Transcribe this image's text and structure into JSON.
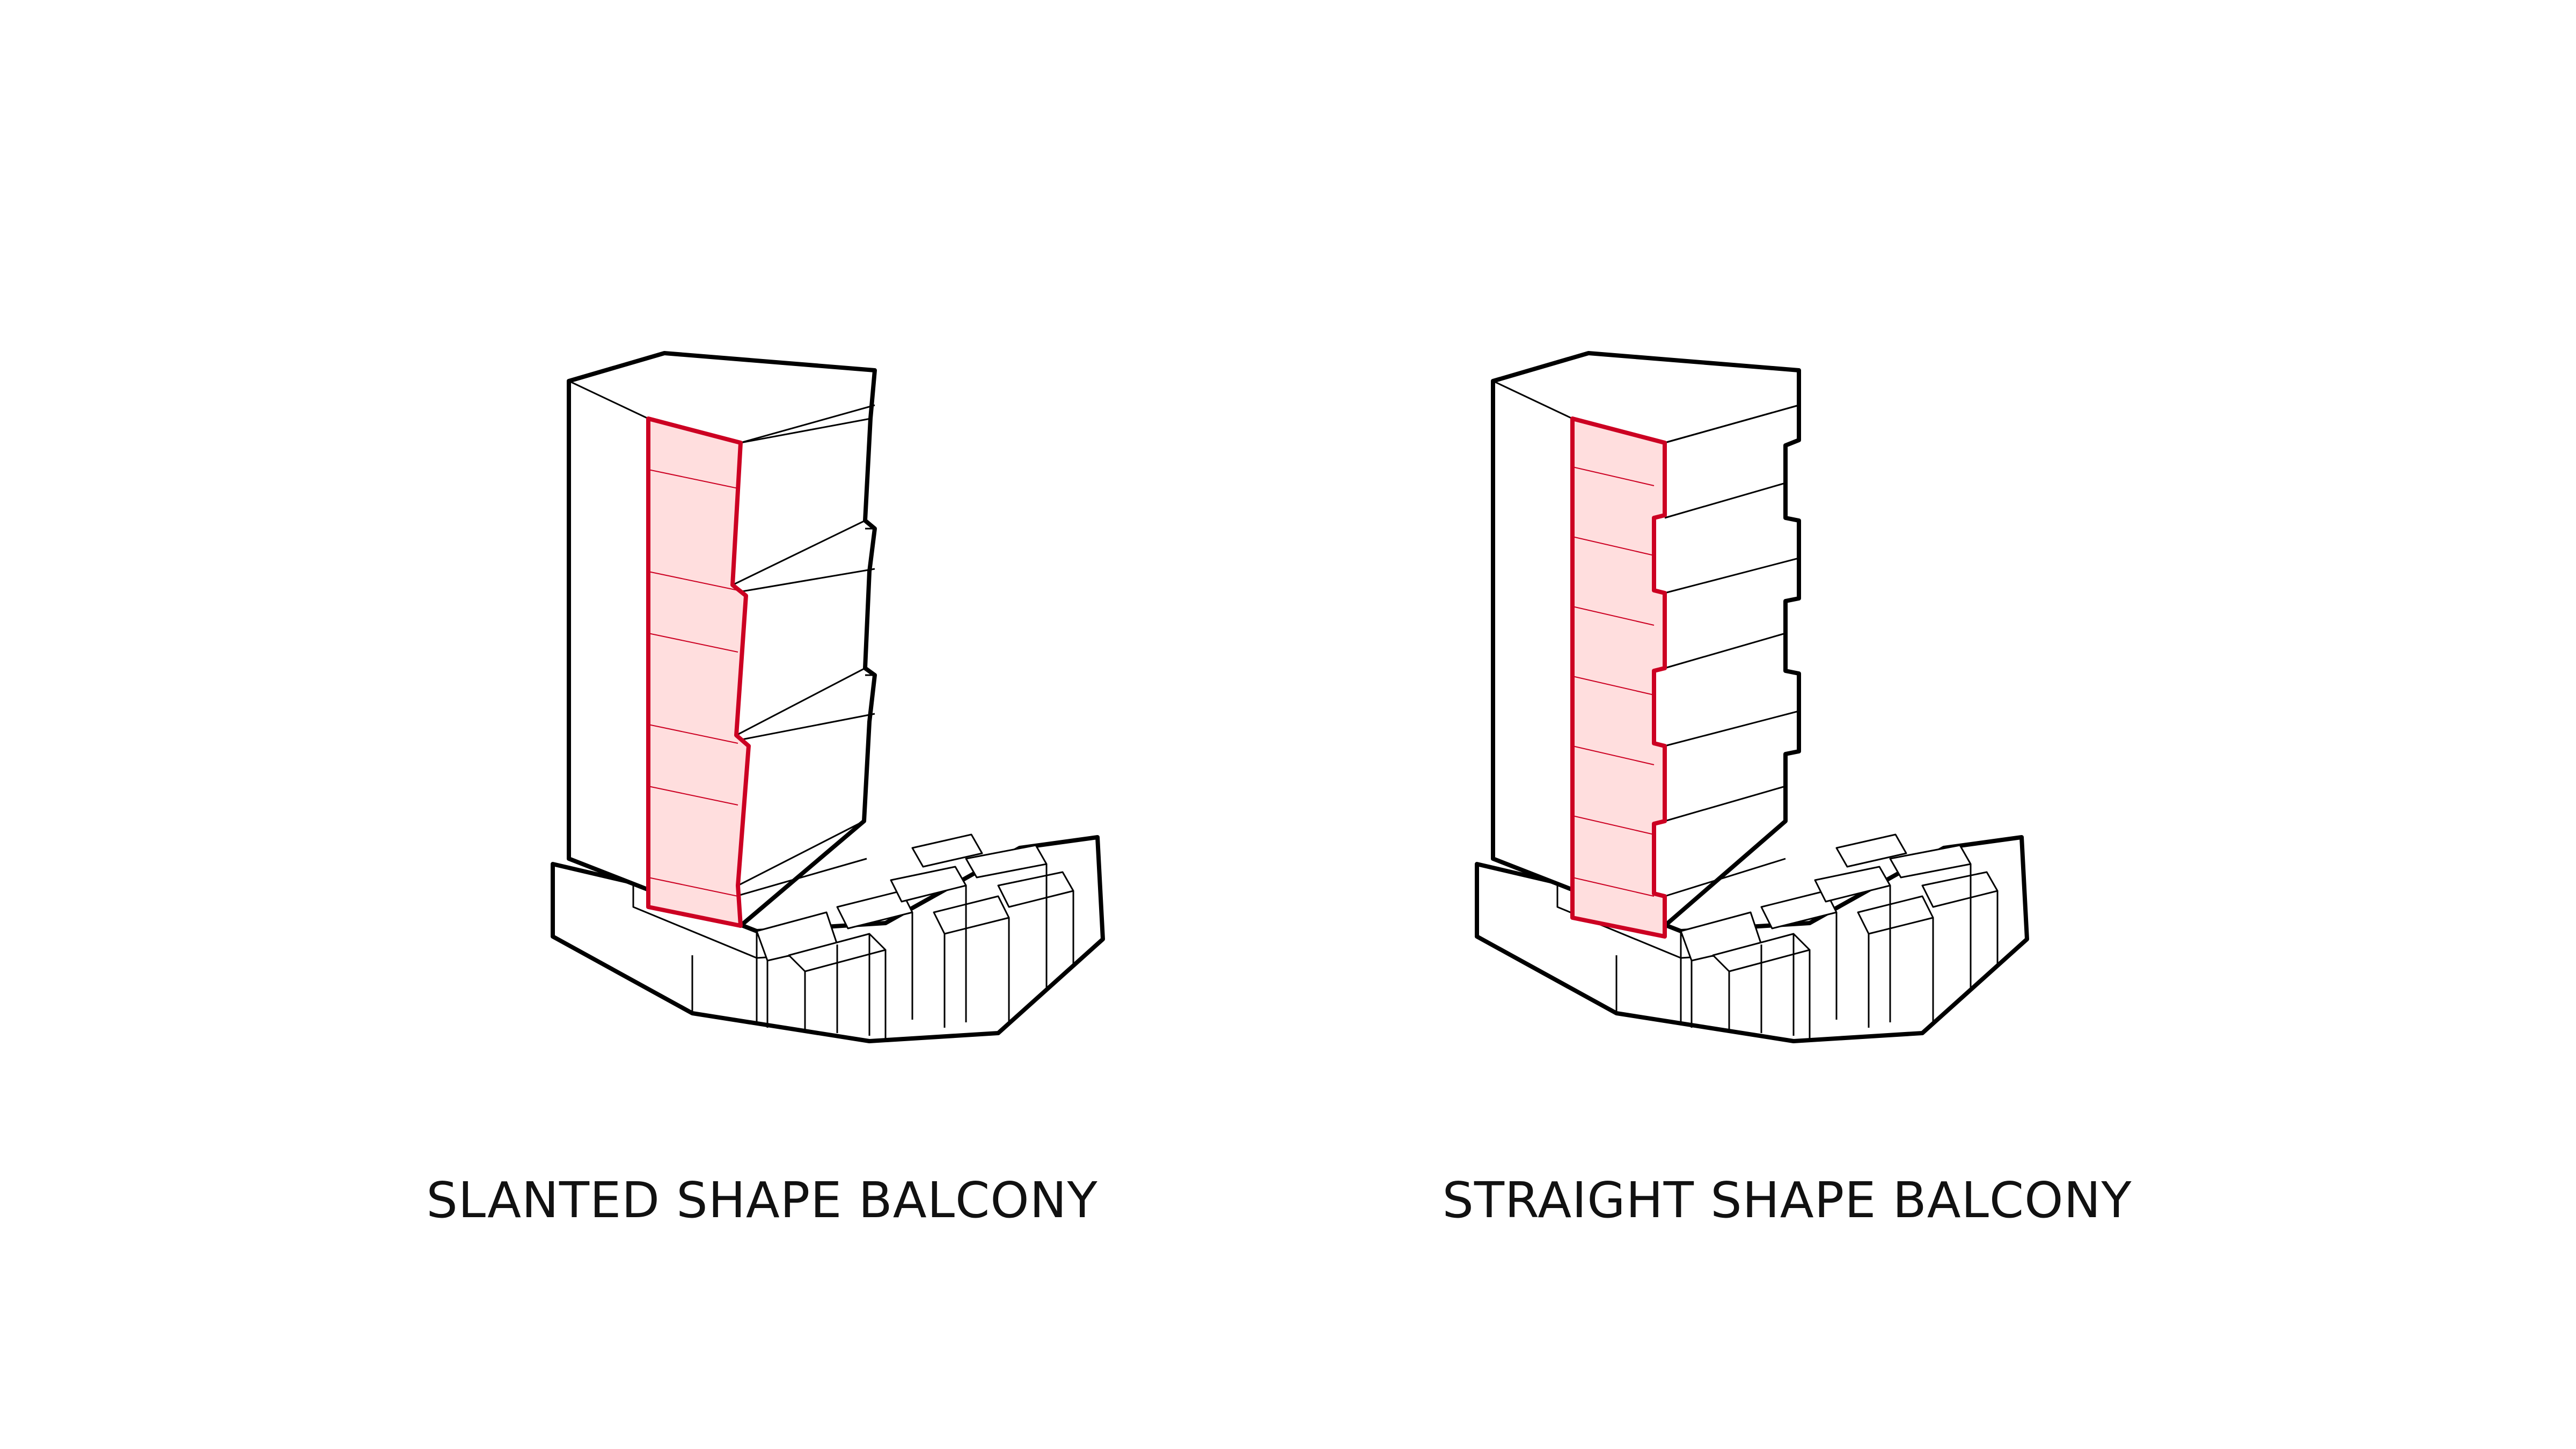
{
  "colors": {
    "background": "#ffffff",
    "outline": "#000000",
    "balcony_stroke": "#cc0022",
    "balcony_fill": "#ffdede",
    "text": "#111111"
  },
  "diagrams": [
    {
      "caption": "SLANTED SHAPE BALCONY"
    },
    {
      "caption": "STRAIGHT SHAPE BALCONY"
    }
  ]
}
